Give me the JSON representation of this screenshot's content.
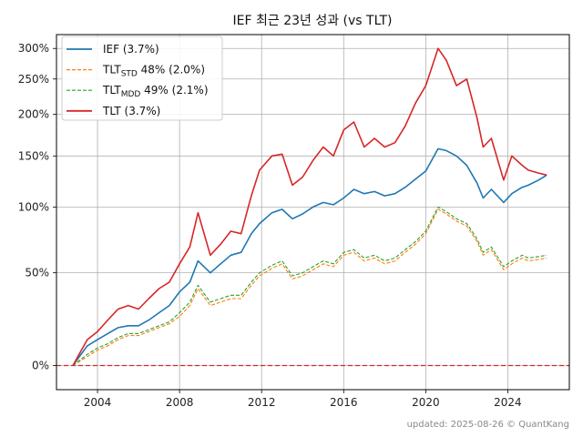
{
  "chart_data": {
    "type": "line",
    "title": "IEF 최근 23년 성과 (vs TLT)",
    "xlabel": "",
    "ylabel": "",
    "x_range": [
      2002.0,
      2027.0
    ],
    "y_transform": "log(1+r)",
    "y_range_pct": [
      -10,
      325
    ],
    "x_ticks": [
      2004,
      2008,
      2012,
      2016,
      2020,
      2024
    ],
    "x_tick_labels": [
      "2004",
      "2008",
      "2012",
      "2016",
      "2020",
      "2024"
    ],
    "y_ticks": [
      0,
      50,
      100,
      150,
      200,
      250,
      300
    ],
    "y_tick_labels": [
      "0%",
      "50%",
      "100%",
      "150%",
      "200%",
      "250%",
      "300%"
    ],
    "grid": true,
    "legend_position": "top-left",
    "reference_line": {
      "y": 0,
      "color": "#d62728",
      "style": "dashed"
    },
    "series": [
      {
        "name": "IEF (3.7%)",
        "label_main": "IEF",
        "label_sub": "",
        "label_rest": " (3.7%)",
        "color": "#1f77b4",
        "style": "solid",
        "x": [
          2002.8,
          2003.5,
          2004.0,
          2004.5,
          2005.0,
          2005.5,
          2006.0,
          2006.5,
          2007.0,
          2007.5,
          2008.0,
          2008.5,
          2008.9,
          2009.5,
          2010.0,
          2010.5,
          2011.0,
          2011.5,
          2011.9,
          2012.5,
          2013.0,
          2013.5,
          2014.0,
          2014.5,
          2015.0,
          2015.5,
          2016.0,
          2016.5,
          2017.0,
          2017.5,
          2018.0,
          2018.5,
          2019.0,
          2019.5,
          2020.0,
          2020.6,
          2021.0,
          2021.5,
          2022.0,
          2022.5,
          2022.8,
          2023.2,
          2023.8,
          2024.2,
          2024.7,
          2025.0,
          2025.5,
          2025.9
        ],
        "values": [
          0,
          9,
          12,
          15,
          18,
          19,
          19,
          22,
          26,
          30,
          38,
          44,
          58,
          50,
          56,
          62,
          64,
          78,
          86,
          95,
          98,
          90,
          94,
          100,
          104,
          102,
          108,
          116,
          112,
          114,
          110,
          112,
          118,
          126,
          134,
          158,
          156,
          150,
          140,
          122,
          108,
          116,
          104,
          112,
          118,
          120,
          125,
          130
        ]
      },
      {
        "name": "TLT_STD 48% (2.0%)",
        "label_main": "TLT",
        "label_sub": "STD",
        "label_rest": " 48%  (2.0%)",
        "color": "#ff7f0e",
        "style": "dashed",
        "x": [
          2002.8,
          2003.5,
          2004.0,
          2004.5,
          2005.0,
          2005.5,
          2006.0,
          2006.5,
          2007.0,
          2007.5,
          2008.0,
          2008.5,
          2008.9,
          2009.5,
          2010.0,
          2010.5,
          2011.0,
          2011.5,
          2011.9,
          2012.5,
          2013.0,
          2013.5,
          2014.0,
          2014.5,
          2015.0,
          2015.5,
          2016.0,
          2016.5,
          2017.0,
          2017.5,
          2018.0,
          2018.5,
          2019.0,
          2019.5,
          2020.0,
          2020.6,
          2021.0,
          2021.5,
          2022.0,
          2022.5,
          2022.8,
          2023.2,
          2023.8,
          2024.2,
          2024.7,
          2025.0,
          2025.5,
          2025.9
        ],
        "values": [
          0,
          4,
          7,
          9,
          12,
          14,
          14,
          16,
          18,
          20,
          24,
          30,
          40,
          30,
          32,
          34,
          34,
          42,
          48,
          53,
          56,
          46,
          48,
          52,
          56,
          54,
          62,
          64,
          58,
          60,
          56,
          58,
          64,
          70,
          78,
          98,
          94,
          88,
          84,
          72,
          62,
          66,
          52,
          56,
          60,
          58,
          59,
          60
        ]
      },
      {
        "name": "TLT_MDD 49% (2.1%)",
        "label_main": "TLT",
        "label_sub": "MDD",
        "label_rest": " 49% (2.1%)",
        "color": "#2ca02c",
        "style": "dashed",
        "x": [
          2002.8,
          2003.5,
          2004.0,
          2004.5,
          2005.0,
          2005.5,
          2006.0,
          2006.5,
          2007.0,
          2007.5,
          2008.0,
          2008.5,
          2008.9,
          2009.5,
          2010.0,
          2010.5,
          2011.0,
          2011.5,
          2011.9,
          2012.5,
          2013.0,
          2013.5,
          2014.0,
          2014.5,
          2015.0,
          2015.5,
          2016.0,
          2016.5,
          2017.0,
          2017.5,
          2018.0,
          2018.5,
          2019.0,
          2019.5,
          2020.0,
          2020.6,
          2021.0,
          2021.5,
          2022.0,
          2022.5,
          2022.8,
          2023.2,
          2023.8,
          2024.2,
          2024.7,
          2025.0,
          2025.5,
          2025.9
        ],
        "values": [
          0,
          5,
          8,
          10,
          13,
          15,
          15,
          17,
          19,
          21,
          26,
          32,
          42,
          32,
          34,
          36,
          36,
          44,
          50,
          55,
          58,
          48,
          50,
          54,
          58,
          56,
          64,
          66,
          60,
          62,
          58,
          60,
          66,
          72,
          80,
          100,
          96,
          90,
          86,
          74,
          64,
          68,
          54,
          58,
          62,
          60,
          61,
          62
        ]
      },
      {
        "name": "TLT (3.7%)",
        "label_main": "TLT",
        "label_sub": "",
        "label_rest": " (3.7%)",
        "color": "#d62728",
        "style": "solid",
        "x": [
          2002.8,
          2003.5,
          2004.0,
          2004.5,
          2005.0,
          2005.5,
          2006.0,
          2006.5,
          2007.0,
          2007.5,
          2008.0,
          2008.5,
          2008.9,
          2009.5,
          2010.0,
          2010.5,
          2011.0,
          2011.5,
          2011.9,
          2012.5,
          2013.0,
          2013.5,
          2014.0,
          2014.5,
          2015.0,
          2015.5,
          2016.0,
          2016.5,
          2017.0,
          2017.5,
          2018.0,
          2018.5,
          2019.0,
          2019.5,
          2020.0,
          2020.6,
          2021.0,
          2021.5,
          2022.0,
          2022.5,
          2022.8,
          2023.2,
          2023.8,
          2024.2,
          2024.7,
          2025.0,
          2025.5,
          2025.9
        ],
        "values": [
          0,
          12,
          16,
          22,
          28,
          30,
          28,
          34,
          40,
          44,
          56,
          68,
          95,
          62,
          70,
          80,
          78,
          110,
          135,
          150,
          152,
          120,
          128,
          145,
          160,
          150,
          180,
          190,
          160,
          170,
          160,
          165,
          185,
          215,
          240,
          300,
          280,
          240,
          250,
          195,
          160,
          170,
          125,
          150,
          140,
          135,
          132,
          130
        ]
      }
    ]
  },
  "footer": {
    "text": "updated: 2025-08-26 © QuantKang"
  }
}
